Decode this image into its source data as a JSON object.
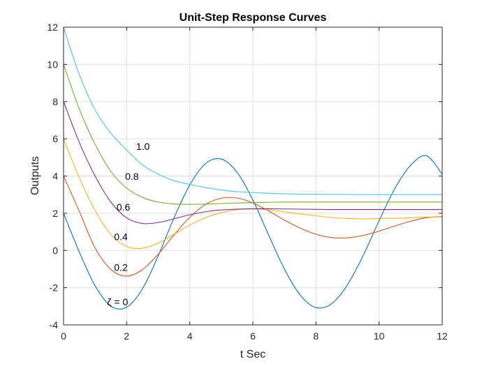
{
  "chart_data": {
    "type": "line",
    "title": "Unit-Step Response Curves",
    "xlabel": "t Sec",
    "ylabel": "Outputs",
    "xlim": [
      0,
      12
    ],
    "ylim": [
      -4,
      12
    ],
    "xticks": [
      "0",
      "2",
      "4",
      "6",
      "8",
      "10",
      "12"
    ],
    "yticks": [
      "-4",
      "-2",
      "0",
      "2",
      "4",
      "6",
      "8",
      "10",
      "12"
    ],
    "grid": true,
    "annotations": [
      {
        "text": "ζ = 0",
        "x": 1.38,
        "y": -2.95
      },
      {
        "text": "0.2",
        "x": 1.6,
        "y": -1.1
      },
      {
        "text": "0.4",
        "x": 1.6,
        "y": 0.55
      },
      {
        "text": "0.6",
        "x": 1.68,
        "y": 2.15
      },
      {
        "text": "0.8",
        "x": 1.95,
        "y": 3.8
      },
      {
        "text": "1.0",
        "x": 2.3,
        "y": 5.4
      }
    ],
    "series": [
      {
        "name": "",
        "color": "#0072BD",
        "x": [
          0,
          0.5,
          1,
          1.5,
          2,
          2.5,
          3,
          3.5,
          4,
          4.5,
          5,
          5.5,
          6,
          6.5,
          7,
          7.5,
          8,
          8.5,
          9,
          9.5,
          10,
          10.5,
          11,
          11.5,
          12
        ],
        "y": [
          2.0,
          -0.09,
          -1.9,
          -2.99,
          -3.05,
          -2.06,
          -0.29,
          1.75,
          3.52,
          4.67,
          4.91,
          4.2,
          2.71,
          0.83,
          -1.0,
          -2.4,
          -3.07,
          -2.86,
          -1.84,
          -0.26,
          1.6,
          3.33,
          4.58,
          5.09,
          4.1
        ]
      },
      {
        "name": "",
        "color": "#D95319",
        "x": [
          0,
          0.5,
          1,
          1.5,
          2,
          2.5,
          3,
          3.5,
          4,
          4.5,
          5,
          5.5,
          6,
          6.5,
          7,
          7.5,
          8,
          8.5,
          9,
          9.5,
          10,
          10.5,
          11,
          11.5,
          12
        ],
        "y": [
          4.0,
          2.1,
          0.13,
          -1.02,
          -1.38,
          -1.03,
          -0.2,
          0.83,
          1.78,
          2.47,
          2.81,
          2.82,
          2.55,
          2.12,
          1.63,
          1.2,
          0.87,
          0.69,
          0.68,
          0.81,
          1.04,
          1.32,
          1.57,
          1.76,
          1.82
        ]
      },
      {
        "name": "",
        "color": "#EDB120",
        "x": [
          0,
          0.5,
          1,
          1.5,
          2,
          2.5,
          3,
          3.5,
          4,
          4.5,
          5,
          5.5,
          6,
          6.5,
          7,
          7.5,
          8,
          8.5,
          9,
          9.5,
          10,
          10.5,
          11,
          11.5,
          12
        ],
        "y": [
          6.0,
          3.9,
          2.15,
          0.86,
          0.21,
          0.12,
          0.4,
          0.87,
          1.36,
          1.76,
          2.04,
          2.19,
          2.23,
          2.18,
          2.08,
          1.97,
          1.86,
          1.77,
          1.72,
          1.7,
          1.71,
          1.73,
          1.76,
          1.79,
          1.8
        ]
      },
      {
        "name": "",
        "color": "#7E2F8E",
        "x": [
          0,
          0.5,
          1,
          1.5,
          2,
          2.5,
          3,
          3.5,
          4,
          4.5,
          5,
          5.5,
          6,
          6.5,
          7,
          7.5,
          8,
          8.5,
          9,
          9.5,
          10,
          10.5,
          11,
          11.5,
          12
        ],
        "y": [
          8.0,
          5.8,
          4.0,
          2.6,
          1.75,
          1.45,
          1.5,
          1.7,
          1.92,
          2.08,
          2.18,
          2.22,
          2.24,
          2.24,
          2.23,
          2.22,
          2.21,
          2.2,
          2.2,
          2.2,
          2.2,
          2.2,
          2.2,
          2.2,
          2.2
        ]
      },
      {
        "name": "",
        "color": "#77AC30",
        "x": [
          0,
          0.5,
          1,
          1.5,
          2,
          2.5,
          3,
          3.5,
          4,
          4.5,
          5,
          5.5,
          6,
          6.5,
          7,
          7.5,
          8,
          8.5,
          9,
          9.5,
          10,
          10.5,
          11,
          11.5,
          12
        ],
        "y": [
          10.0,
          7.6,
          5.7,
          4.25,
          3.35,
          2.85,
          2.6,
          2.5,
          2.48,
          2.49,
          2.52,
          2.55,
          2.57,
          2.59,
          2.6,
          2.6,
          2.6,
          2.6,
          2.6,
          2.6,
          2.6,
          2.6,
          2.6,
          2.6,
          2.6
        ]
      },
      {
        "name": "",
        "color": "#4DBEEE",
        "x": [
          0,
          0.5,
          1,
          1.5,
          2,
          2.5,
          3,
          3.5,
          4,
          4.5,
          5,
          5.5,
          6,
          6.5,
          7,
          7.5,
          8,
          8.5,
          9,
          9.5,
          10,
          10.5,
          11,
          11.5,
          12
        ],
        "y": [
          12.0,
          9.45,
          7.55,
          6.3,
          5.4,
          4.6,
          4.1,
          3.75,
          3.55,
          3.38,
          3.25,
          3.16,
          3.11,
          3.07,
          3.04,
          3.03,
          3.02,
          3.01,
          3.01,
          3.0,
          3.0,
          3.0,
          3.0,
          3.0,
          3.0
        ]
      }
    ]
  }
}
